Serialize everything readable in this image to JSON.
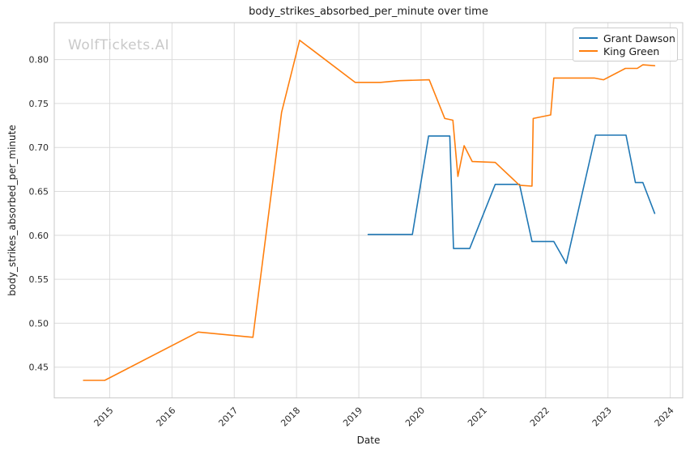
{
  "chart_data": {
    "type": "line",
    "title": "body_strikes_absorbed_per_minute over time",
    "xlabel": "Date",
    "ylabel": "body_strikes_absorbed_per_minute",
    "watermark": "WolfTickets.AI",
    "grid": true,
    "legend_position": "upper right",
    "xlim": [
      2014.11,
      2024.2
    ],
    "ylim": [
      0.415,
      0.842
    ],
    "x_ticks": [
      2015,
      2016,
      2017,
      2018,
      2019,
      2020,
      2021,
      2022,
      2023,
      2024
    ],
    "x_tick_labels": [
      "2015",
      "2016",
      "2017",
      "2018",
      "2019",
      "2020",
      "2021",
      "2022",
      "2023",
      "2024"
    ],
    "y_ticks": [
      0.45,
      0.5,
      0.55,
      0.6,
      0.65,
      0.7,
      0.75,
      0.8
    ],
    "y_tick_labels": [
      "0.45",
      "0.50",
      "0.55",
      "0.60",
      "0.65",
      "0.70",
      "0.75",
      "0.80"
    ],
    "colors": {
      "grid": "#dcdcdc",
      "spine": "#c9c9c9",
      "watermark": "#c9c9c9"
    },
    "series": [
      {
        "name": "Grant Dawson",
        "color": "#1f77b4",
        "points": [
          [
            2019.15,
            0.601
          ],
          [
            2019.86,
            0.601
          ],
          [
            2020.12,
            0.713
          ],
          [
            2020.46,
            0.713
          ],
          [
            2020.52,
            0.585
          ],
          [
            2020.78,
            0.585
          ],
          [
            2021.19,
            0.658
          ],
          [
            2021.58,
            0.658
          ],
          [
            2021.78,
            0.593
          ],
          [
            2022.13,
            0.593
          ],
          [
            2022.33,
            0.568
          ],
          [
            2022.8,
            0.714
          ],
          [
            2023.29,
            0.714
          ],
          [
            2023.44,
            0.66
          ],
          [
            2023.56,
            0.66
          ],
          [
            2023.75,
            0.625
          ]
        ]
      },
      {
        "name": "King Green",
        "color": "#ff7f0e",
        "points": [
          [
            2014.58,
            0.435
          ],
          [
            2014.92,
            0.435
          ],
          [
            2016.42,
            0.49
          ],
          [
            2017.3,
            0.484
          ],
          [
            2017.76,
            0.74
          ],
          [
            2018.05,
            0.822
          ],
          [
            2018.94,
            0.774
          ],
          [
            2019.35,
            0.774
          ],
          [
            2019.65,
            0.776
          ],
          [
            2020.13,
            0.777
          ],
          [
            2020.38,
            0.733
          ],
          [
            2020.51,
            0.731
          ],
          [
            2020.59,
            0.667
          ],
          [
            2020.69,
            0.702
          ],
          [
            2020.82,
            0.684
          ],
          [
            2021.19,
            0.683
          ],
          [
            2021.58,
            0.657
          ],
          [
            2021.78,
            0.656
          ],
          [
            2021.8,
            0.733
          ],
          [
            2022.08,
            0.737
          ],
          [
            2022.13,
            0.779
          ],
          [
            2022.78,
            0.779
          ],
          [
            2022.93,
            0.777
          ],
          [
            2023.28,
            0.79
          ],
          [
            2023.47,
            0.79
          ],
          [
            2023.56,
            0.794
          ],
          [
            2023.75,
            0.793
          ]
        ]
      }
    ]
  }
}
